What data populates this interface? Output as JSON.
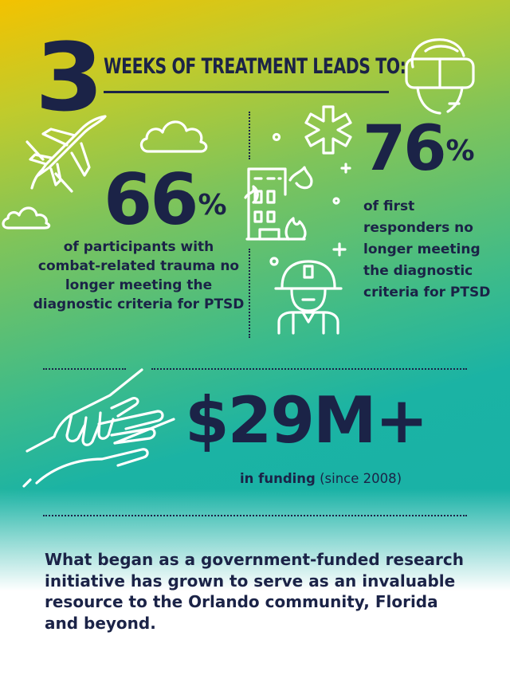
{
  "headline": {
    "number": "3",
    "text": "WEEKS OF TREATMENT LEADS TO:"
  },
  "stats": [
    {
      "value": "66",
      "unit": "%",
      "description": "of participants with combat-related trauma no longer meeting the diagnostic criteria for PTSD"
    },
    {
      "value": "76",
      "unit": "%",
      "description": "of first responders no longer meeting the diagnostic criteria for PTSD"
    }
  ],
  "funding": {
    "value": "$29M+",
    "label_bold": "in funding",
    "label_note": "(since 2008)"
  },
  "closing_text": "What began as a government-funded research initiative has grown to serve as an invaluable resource to the Orlando community, Florida and beyond.",
  "icons": [
    "vr-headset-icon",
    "fighter-jet-icon",
    "cloud-icon",
    "medical-star-icon",
    "burning-building-icon",
    "firefighter-icon",
    "helping-hands-icon"
  ],
  "colors": {
    "navy": "#1b2347",
    "gradient_top": "#f3c200",
    "gradient_middle": "#3dbb8a",
    "gradient_bottom": "#16b0aa",
    "icon_stroke": "#ffffff"
  }
}
